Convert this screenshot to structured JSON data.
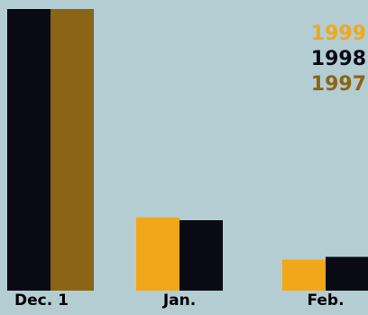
{
  "chart_data": {
    "type": "bar",
    "title": "",
    "xlabel": "",
    "ylabel": "",
    "categories": [
      "Dec. 1",
      "Jan.",
      "Feb."
    ],
    "ylim": [
      0,
      100
    ],
    "grid": false,
    "legend_placement": "top-right",
    "series": [
      {
        "name": "1999",
        "color": "#f0a81a",
        "values": [
          null,
          26,
          11
        ]
      },
      {
        "name": "1998",
        "color": "#0a0a14",
        "values": [
          100,
          25,
          12
        ]
      },
      {
        "name": "1997",
        "color": "#8b6515",
        "values": [
          100,
          null,
          null
        ]
      }
    ]
  }
}
